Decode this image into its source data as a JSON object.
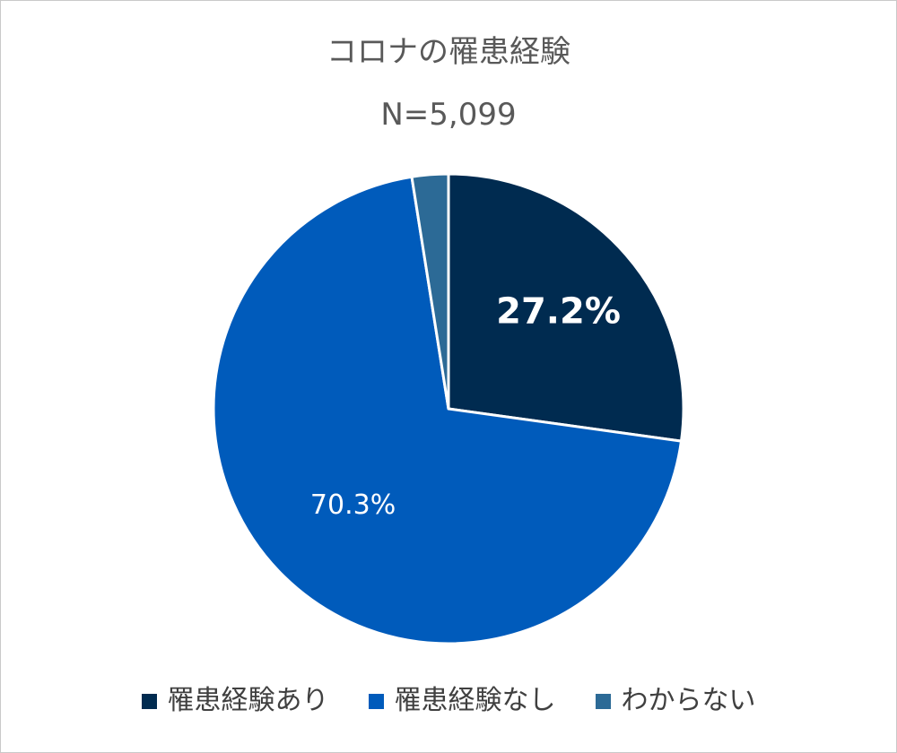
{
  "chart_data": {
    "type": "pie",
    "title": "コロナの罹患経験",
    "subtitle": "N=5,099",
    "categories": [
      "罹患経験あり",
      "罹患経験なし",
      "わからない"
    ],
    "values": [
      27.2,
      70.3,
      2.5
    ],
    "data_labels": [
      "27.2%",
      "70.3%",
      ""
    ],
    "colors": [
      "#002b50",
      "#005bbb",
      "#2c6a96"
    ],
    "legend_position": "bottom",
    "start_angle_deg": 0,
    "direction": "clockwise"
  }
}
